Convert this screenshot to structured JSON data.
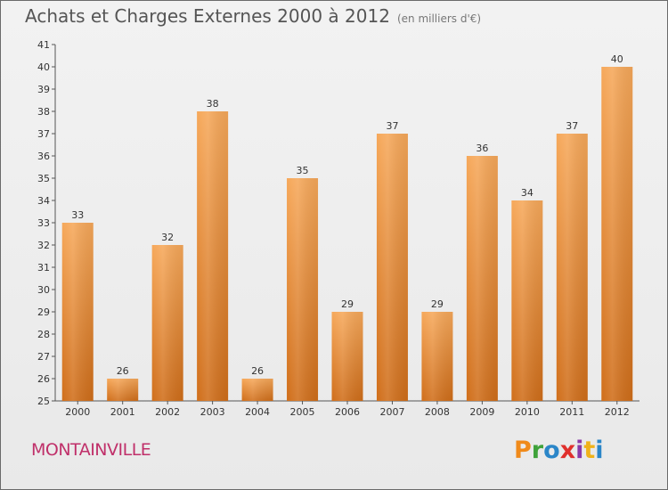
{
  "header": {
    "title": "Achats et Charges Externes 2000 à 2012",
    "unit": "(en milliers d'€)"
  },
  "footer": {
    "commune": "MONTAINVILLE",
    "logo": [
      "P",
      "r",
      "o",
      "x",
      "i",
      "t",
      "i"
    ]
  },
  "colors": {
    "bar_top": "#f6a85a",
    "bar_bottom": "#d06e1a",
    "commune": "#c0306a"
  },
  "chart_data": {
    "type": "bar",
    "title": "Achats et Charges Externes 2000 à 2012",
    "subtitle": "(en milliers d'€)",
    "xlabel": "",
    "ylabel": "",
    "categories": [
      "2000",
      "2001",
      "2002",
      "2003",
      "2004",
      "2005",
      "2006",
      "2007",
      "2008",
      "2009",
      "2010",
      "2011",
      "2012"
    ],
    "values": [
      33,
      26,
      32,
      38,
      26,
      35,
      29,
      37,
      29,
      36,
      34,
      37,
      40
    ],
    "data_labels": [
      "33",
      "26",
      "32",
      "38",
      "26",
      "35",
      "29",
      "37",
      "29",
      "36",
      "34",
      "37",
      "40"
    ],
    "ylim": [
      25,
      41
    ],
    "yticks": [
      "25",
      "26",
      "27",
      "28",
      "29",
      "30",
      "31",
      "32",
      "33",
      "34",
      "35",
      "36",
      "37",
      "38",
      "39",
      "40",
      "41"
    ],
    "grid": false,
    "legend": "none"
  }
}
